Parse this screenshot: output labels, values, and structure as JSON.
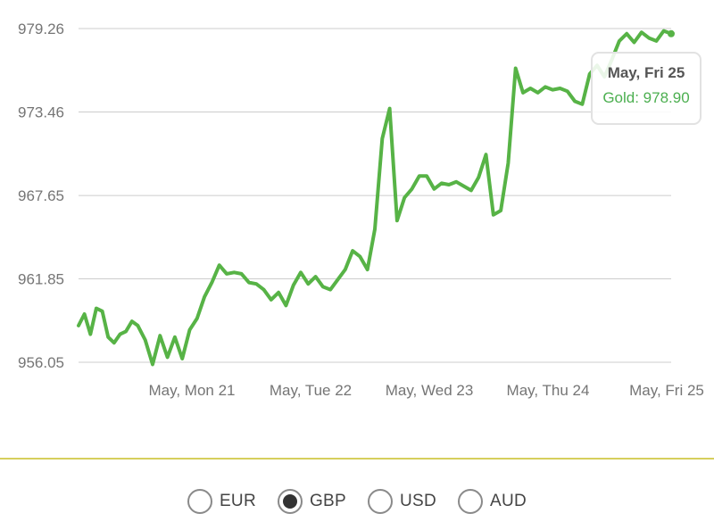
{
  "chart_data": {
    "type": "line",
    "series": [
      {
        "name": "Gold",
        "color": "#57b346",
        "x": [
          0,
          0.04,
          0.08,
          0.12,
          0.16,
          0.2,
          0.24,
          0.28,
          0.32,
          0.36,
          0.4,
          0.45,
          0.5,
          0.55,
          0.6,
          0.65,
          0.7,
          0.75,
          0.8,
          0.85,
          0.9,
          0.95,
          1.0,
          1.05,
          1.1,
          1.15,
          1.2,
          1.25,
          1.3,
          1.35,
          1.4,
          1.45,
          1.5,
          1.55,
          1.6,
          1.65,
          1.7,
          1.75,
          1.8,
          1.85,
          1.9,
          1.95,
          2.0,
          2.05,
          2.1,
          2.15,
          2.2,
          2.25,
          2.3,
          2.35,
          2.4,
          2.45,
          2.5,
          2.55,
          2.6,
          2.65,
          2.7,
          2.75,
          2.8,
          2.85,
          2.9,
          2.95,
          3.0,
          3.05,
          3.1,
          3.15,
          3.2,
          3.25,
          3.3,
          3.35,
          3.4,
          3.45,
          3.5,
          3.55,
          3.6,
          3.65,
          3.7,
          3.75,
          3.8,
          3.85,
          3.9,
          3.95,
          4.0
        ],
        "y": [
          958.6,
          959.4,
          958.0,
          959.8,
          959.6,
          957.8,
          957.4,
          958.0,
          958.2,
          958.9,
          958.6,
          957.6,
          955.9,
          957.9,
          956.4,
          957.8,
          956.3,
          958.3,
          959.1,
          960.6,
          961.6,
          962.8,
          962.2,
          962.3,
          962.2,
          961.6,
          961.5,
          961.1,
          960.4,
          960.9,
          960.0,
          961.4,
          962.3,
          961.5,
          962.0,
          961.3,
          961.1,
          961.8,
          962.5,
          963.8,
          963.4,
          962.5,
          965.3,
          971.6,
          973.7,
          965.9,
          967.5,
          968.1,
          969.0,
          969.0,
          968.1,
          968.5,
          968.4,
          968.6,
          968.3,
          968.0,
          968.9,
          970.5,
          966.3,
          966.6,
          969.9,
          976.5,
          974.8,
          975.1,
          974.8,
          975.2,
          975.0,
          975.1,
          974.9,
          974.2,
          974.0,
          976.1,
          976.7,
          975.9,
          977.1,
          978.4,
          978.9,
          978.3,
          979.0,
          978.6,
          978.4,
          979.1,
          978.9
        ]
      }
    ],
    "x_tick_labels": [
      "May, Mon 21",
      "May, Tue 22",
      "May, Wed 23",
      "May, Thu 24",
      "May, Fri 25"
    ],
    "x_tick_values": [
      1,
      2,
      3,
      4,
      5
    ],
    "y_ticks": [
      "956.05",
      "961.85",
      "967.65",
      "973.46",
      "979.26"
    ],
    "ylim": [
      956.05,
      979.26
    ],
    "xlim": [
      0,
      4.0
    ],
    "grid": "horizontal",
    "xlabel": "",
    "ylabel": ""
  },
  "tooltip": {
    "title": "May, Fri 25",
    "value_text": "Gold: 978.90"
  },
  "currencies": [
    {
      "label": "EUR",
      "selected": false
    },
    {
      "label": "GBP",
      "selected": true
    },
    {
      "label": "USD",
      "selected": false
    },
    {
      "label": "AUD",
      "selected": false
    }
  ],
  "colors": {
    "line": "#57b346",
    "divider": "#d6cf5c",
    "tooltip_value": "#4caf50"
  }
}
